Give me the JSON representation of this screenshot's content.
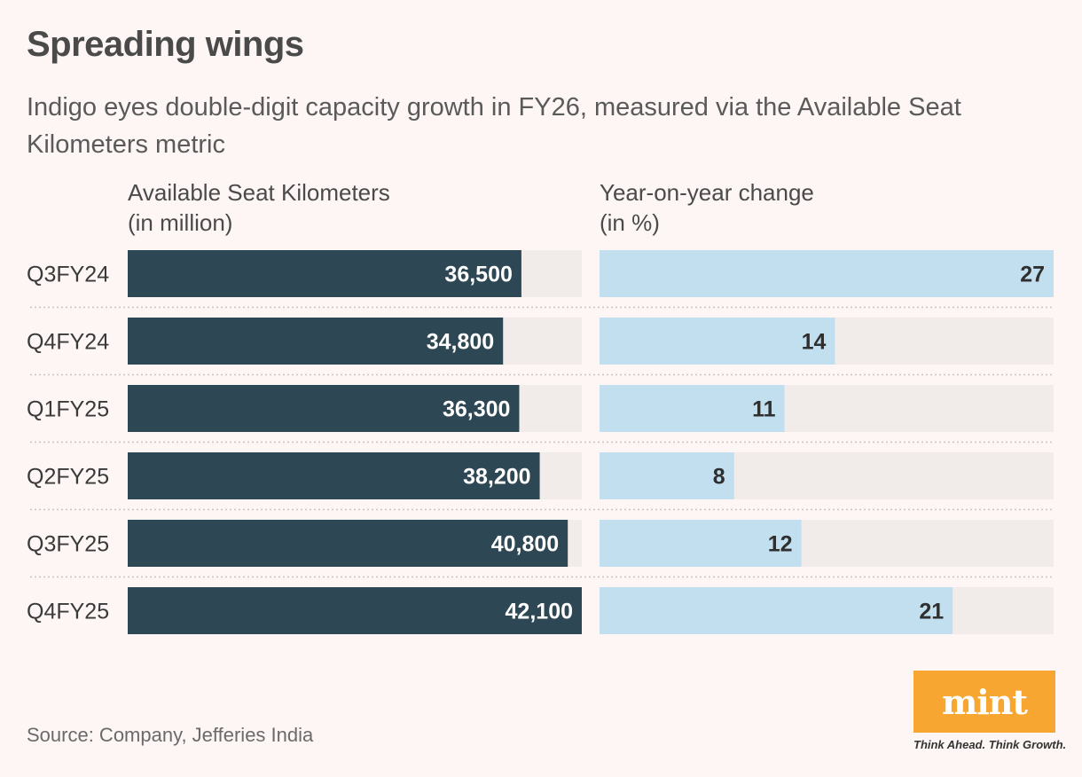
{
  "title": "Spreading wings",
  "subtitle": "Indigo eyes double-digit capacity growth in FY26, measured via the Available Seat Kilometers metric",
  "colors": {
    "background": "#fdf6f5",
    "track": "#f1ebea",
    "ask_bar": "#2e4754",
    "yoy_bar": "#c2dff0",
    "logo": "#f7a631"
  },
  "chart_data": {
    "type": "bar",
    "orientation": "horizontal",
    "categories": [
      "Q3FY24",
      "Q4FY24",
      "Q1FY25",
      "Q2FY25",
      "Q3FY25",
      "Q4FY25"
    ],
    "series": [
      {
        "name": "Available Seat Kilometers (in million)",
        "header_line1": "Available Seat Kilometers",
        "header_line2": "(in million)",
        "values": [
          36500,
          34800,
          36300,
          38200,
          40800,
          42100
        ],
        "labels": [
          "36,500",
          "34,800",
          "36,300",
          "38,200",
          "40,800",
          "42,100"
        ],
        "max": 42100
      },
      {
        "name": "Year-on-year change (in %)",
        "header_line1": "Year-on-year change",
        "header_line2": "(in %)",
        "values": [
          27,
          14,
          11,
          8,
          12,
          21
        ],
        "labels": [
          "27",
          "14",
          "11",
          "8",
          "12",
          "21"
        ],
        "max": 27
      }
    ]
  },
  "footer": {
    "source": "Source: Company, Jefferies India",
    "logo_text": "mint",
    "tagline": "Think Ahead. Think Growth."
  }
}
